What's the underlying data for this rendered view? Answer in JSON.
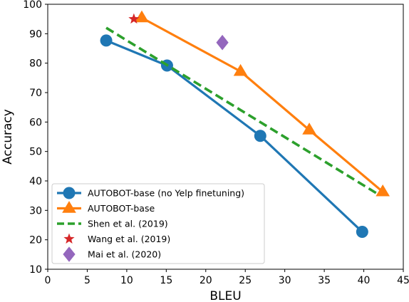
{
  "chart_data": {
    "type": "scatter",
    "title": "",
    "xlabel": "BLEU",
    "ylabel": "Accuracy",
    "xlim": [
      0,
      45
    ],
    "ylim": [
      10,
      100
    ],
    "xticks": [
      0,
      5,
      10,
      15,
      20,
      25,
      30,
      35,
      40,
      45
    ],
    "yticks": [
      10,
      20,
      30,
      40,
      50,
      60,
      70,
      80,
      90,
      100
    ],
    "grid": false,
    "legend_position": "lower-left",
    "series": [
      {
        "name": "AUTOBOT-base (no Yelp finetuning)",
        "mode": "line-marker",
        "marker": "circle",
        "color": "#1f77b4",
        "points": [
          [
            7.4,
            87.7
          ],
          [
            15.1,
            79.2
          ],
          [
            26.9,
            55.3
          ],
          [
            39.8,
            22.7
          ]
        ]
      },
      {
        "name": "AUTOBOT-base",
        "mode": "line-marker",
        "marker": "triangle",
        "color": "#ff7f0e",
        "points": [
          [
            11.9,
            95.4
          ],
          [
            24.4,
            77.2
          ],
          [
            33.1,
            57.3
          ],
          [
            42.4,
            36.3
          ]
        ]
      },
      {
        "name": "Shen et al. (2019)",
        "mode": "dashed-line",
        "marker": "none",
        "color": "#2ca02c",
        "points": [
          [
            7.4,
            92.0
          ],
          [
            41.8,
            35.5
          ]
        ]
      },
      {
        "name": "Wang et al. (2019)",
        "mode": "marker",
        "marker": "star",
        "color": "#d62728",
        "points": [
          [
            10.9,
            95.0
          ]
        ]
      },
      {
        "name": "Mai et al. (2020)",
        "mode": "marker",
        "marker": "diamond",
        "color": "#9467bd",
        "points": [
          [
            22.1,
            87.0
          ]
        ]
      }
    ]
  }
}
